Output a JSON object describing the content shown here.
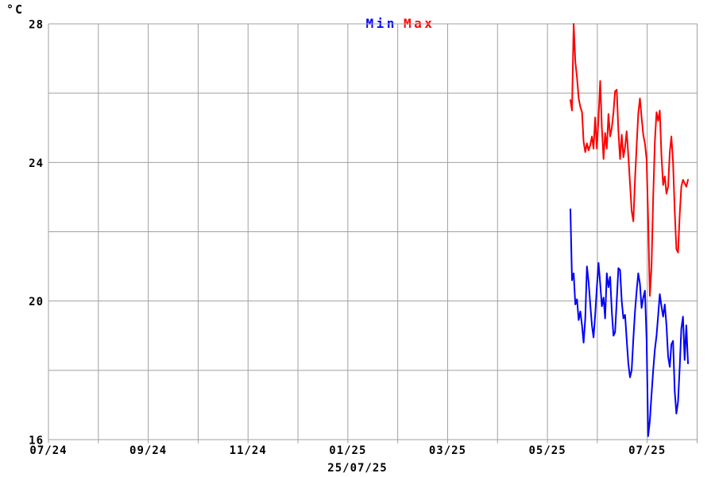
{
  "header": {
    "unit_label": "°C"
  },
  "footer": {
    "date_label": "25/07/25"
  },
  "colors": {
    "background": "#ffffff",
    "grid": "#a0a0a0",
    "text": "#000000",
    "min_series": "#0000ff",
    "max_series": "#ff0000"
  },
  "chart_data": {
    "type": "line",
    "title": "Min Max",
    "ylabel": "°C",
    "xlabel": "",
    "ylim": [
      16,
      28
    ],
    "y_grid_step": 2,
    "y_tick_labels": [
      28,
      24,
      20,
      16
    ],
    "months_total": 13,
    "x_tick_labels": [
      {
        "label": "07/24",
        "month_index": 0
      },
      {
        "label": "09/24",
        "month_index": 2
      },
      {
        "label": "11/24",
        "month_index": 4
      },
      {
        "label": "01/25",
        "month_index": 6
      },
      {
        "label": "03/25",
        "month_index": 8
      },
      {
        "label": "05/25",
        "month_index": 10
      },
      {
        "label": "07/25",
        "month_index": 12
      }
    ],
    "grid": true,
    "legend_position": "top-center",
    "current_date": "25/07/25",
    "data_x_frac_start": 0.8046,
    "data_x_frac_end": 0.9859,
    "series": [
      {
        "name": "Min",
        "color": "#0000ff",
        "values": [
          22.65,
          20.6,
          20.8,
          19.9,
          20.05,
          19.45,
          19.7,
          19.3,
          18.8,
          19.5,
          21.0,
          20.55,
          19.9,
          19.3,
          18.95,
          19.6,
          20.4,
          21.1,
          20.5,
          19.85,
          20.1,
          19.5,
          20.8,
          20.4,
          20.7,
          19.7,
          19.0,
          19.1,
          20.0,
          20.95,
          20.9,
          20.0,
          19.5,
          19.6,
          18.9,
          18.2,
          17.8,
          18.0,
          18.9,
          19.7,
          20.3,
          20.8,
          20.5,
          19.8,
          20.1,
          20.3,
          18.9,
          16.1,
          16.55,
          17.3,
          18.0,
          18.6,
          19.0,
          19.6,
          20.2,
          19.85,
          19.55,
          19.9,
          19.3,
          18.4,
          18.1,
          18.75,
          18.85,
          17.4,
          16.75,
          17.1,
          18.1,
          19.2,
          19.55,
          18.3,
          19.3,
          18.2
        ]
      },
      {
        "name": "Max",
        "color": "#ff0000",
        "values": [
          25.8,
          25.5,
          28.0,
          26.9,
          26.45,
          25.85,
          25.6,
          25.45,
          24.6,
          24.3,
          24.55,
          24.35,
          24.5,
          24.75,
          24.4,
          25.3,
          24.4,
          25.3,
          26.35,
          25.0,
          24.1,
          24.85,
          24.4,
          25.4,
          24.75,
          25.0,
          25.45,
          26.05,
          26.1,
          24.9,
          24.1,
          24.8,
          24.15,
          24.45,
          24.9,
          24.2,
          23.4,
          22.6,
          22.3,
          23.5,
          24.5,
          25.4,
          25.85,
          25.3,
          24.8,
          24.55,
          24.1,
          22.3,
          20.15,
          21.0,
          23.0,
          24.6,
          25.45,
          25.2,
          25.5,
          24.2,
          23.35,
          23.6,
          23.1,
          23.3,
          24.3,
          24.75,
          24.0,
          22.6,
          21.5,
          21.4,
          22.5,
          23.3,
          23.5,
          23.4,
          23.3,
          23.5
        ]
      }
    ]
  }
}
